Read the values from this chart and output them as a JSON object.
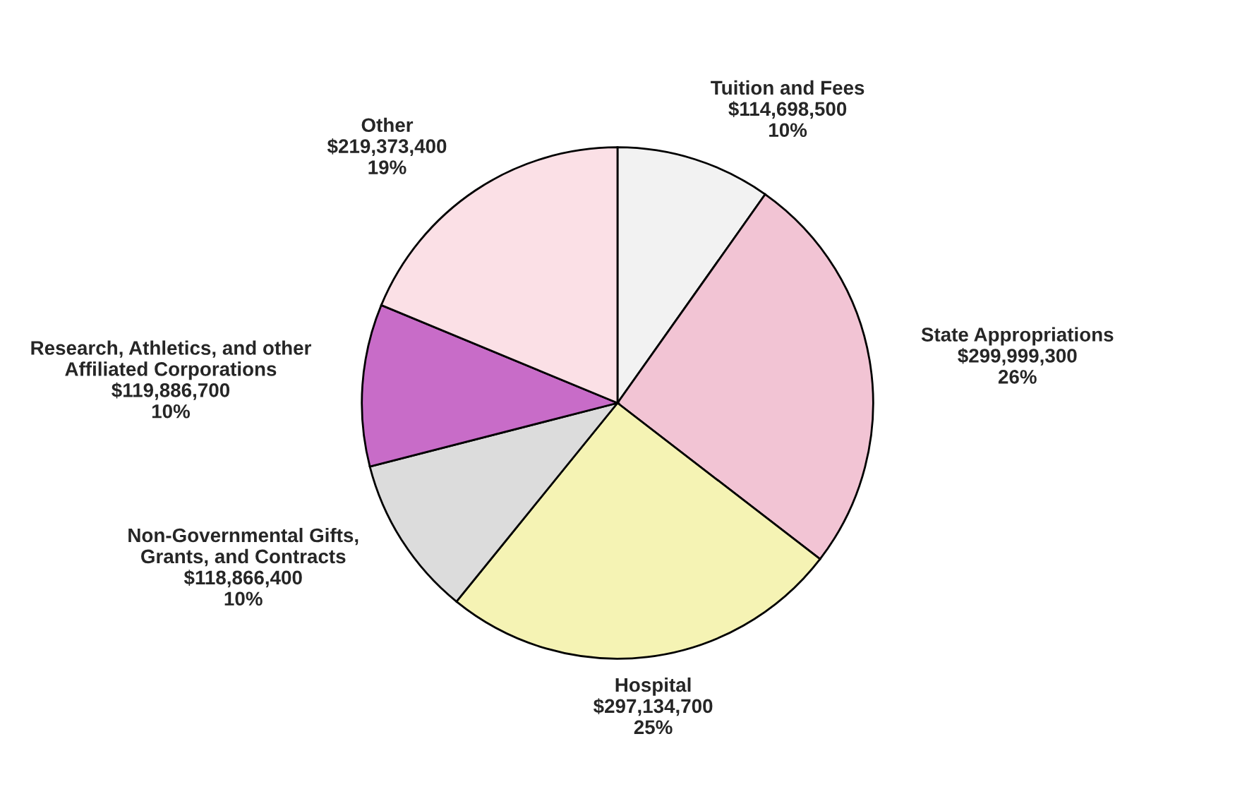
{
  "chart_data": {
    "type": "pie",
    "categories": [
      "Tuition and Fees",
      "State Appropriations",
      "Hospital",
      "Non-Governmental Gifts,\nGrants, and Contracts",
      "Research, Athletics, and other\nAffiliated Corporations",
      "Other"
    ],
    "values": [
      114698500,
      299999300,
      297134700,
      118866400,
      119886700,
      219373400
    ],
    "value_labels": [
      "$114,698,500\n10%",
      "$299,999,300\n26%",
      "$297,134,700\n25%",
      "$118,866,400\n10%",
      "$119,886,700\n10%",
      "$219,373,400\n19%"
    ],
    "colors": [
      "#f2f2f2",
      "#f2c4d4",
      "#f5f3b4",
      "#dcdcdc",
      "#c86cc8",
      "#fbe0e6"
    ],
    "legend": false
  }
}
